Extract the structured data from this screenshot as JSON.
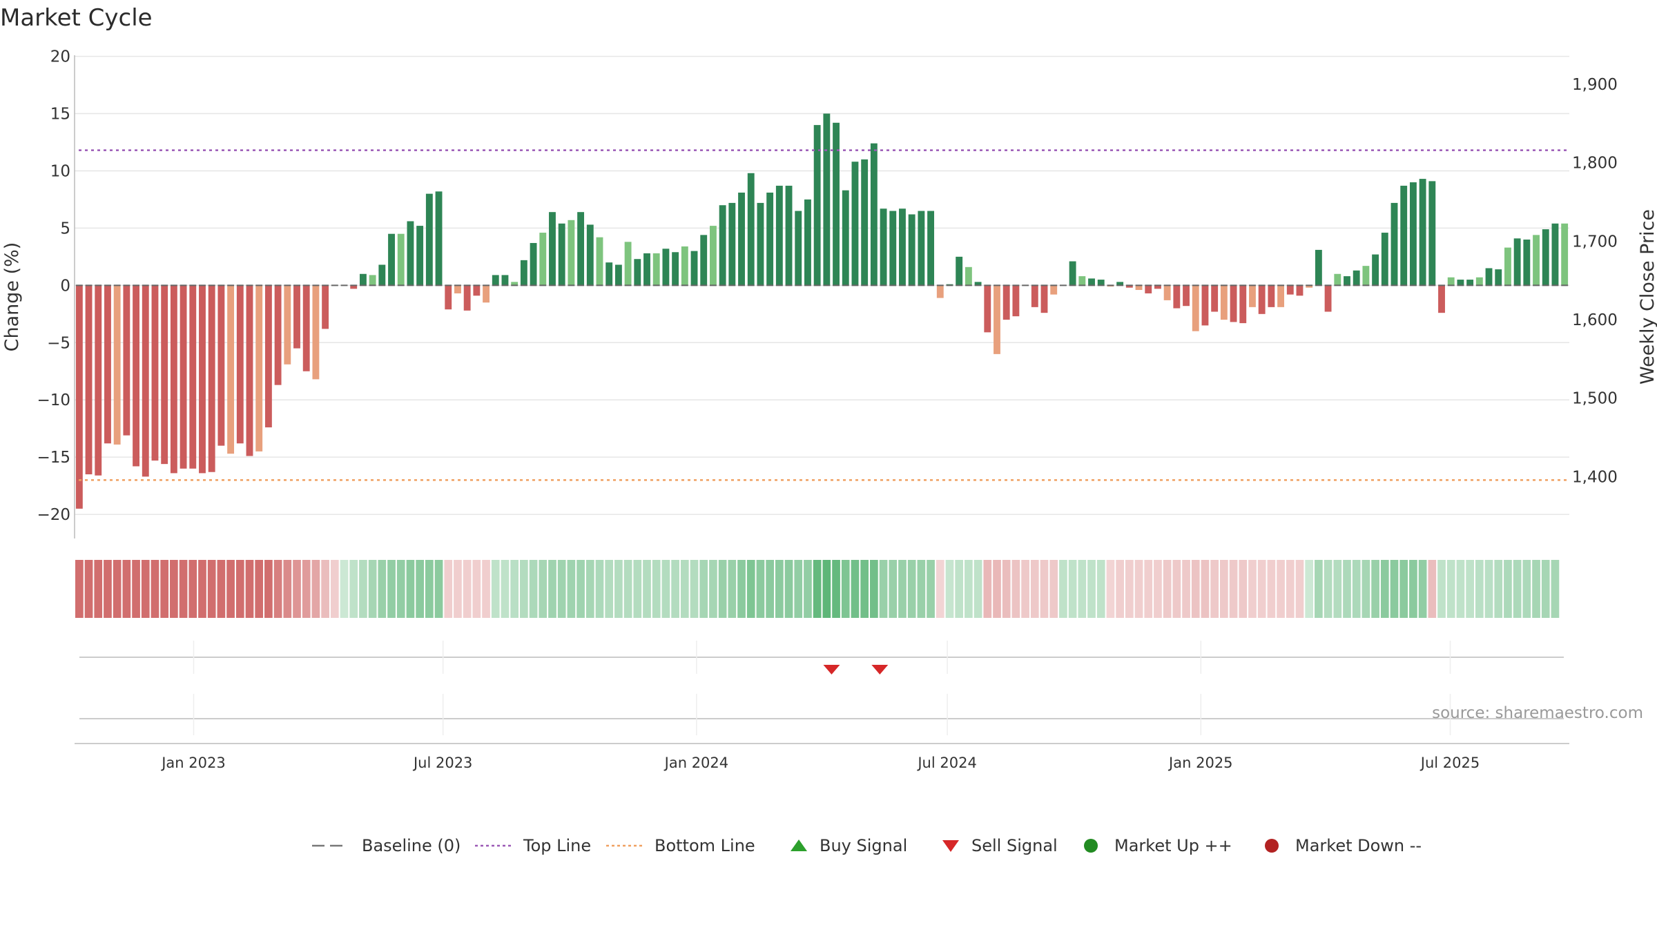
{
  "chart_data": {
    "type": "bar",
    "title": "Market Cycle",
    "ylabel": "Change (%)",
    "y2label": "Weekly Close Price",
    "ylim": [
      -21.5,
      21
    ],
    "yticks": [
      20,
      15,
      10,
      5,
      0,
      -5,
      -10,
      -15,
      -20
    ],
    "y2lim": [
      1330,
      1950
    ],
    "y2ticks": [
      1900,
      1800,
      1700,
      1600,
      1500,
      1400
    ],
    "top_line": 11.8,
    "bottom_line": -17.0,
    "start_date": "2022-10-10",
    "end_date": "2025-09-22",
    "x_ticks": [
      {
        "date": "2023-01-01",
        "label": "Jan 2023"
      },
      {
        "date": "2023-07-01",
        "label": "Jul 2023"
      },
      {
        "date": "2024-01-01",
        "label": "Jan 2024"
      },
      {
        "date": "2024-07-01",
        "label": "Jul 2024"
      },
      {
        "date": "2025-01-01",
        "label": "Jan 2025"
      },
      {
        "date": "2025-07-01",
        "label": "Jul 2025"
      }
    ],
    "values": [
      -19.5,
      -16.5,
      -16.6,
      -13.8,
      -13.9,
      -13.1,
      -15.8,
      -16.7,
      -15.3,
      -15.6,
      -16.4,
      -16.0,
      -16.0,
      -16.4,
      -16.3,
      -14.0,
      -14.7,
      -13.8,
      -14.9,
      -14.5,
      -12.4,
      -8.7,
      -6.9,
      -5.5,
      -7.5,
      -8.2,
      -3.8,
      0,
      0,
      -0.3,
      1.0,
      0.9,
      1.8,
      4.5,
      4.5,
      5.6,
      5.2,
      8.0,
      8.2,
      -2.1,
      -0.7,
      -2.2,
      -0.9,
      -1.5,
      0.9,
      0.9,
      0.3,
      2.2,
      3.7,
      4.6,
      6.4,
      5.4,
      5.7,
      6.4,
      5.3,
      4.2,
      2.0,
      1.8,
      3.8,
      2.3,
      2.8,
      2.8,
      3.2,
      2.9,
      3.4,
      3.0,
      4.4,
      5.2,
      7.0,
      7.2,
      8.1,
      9.8,
      7.2,
      8.1,
      8.7,
      8.7,
      6.5,
      7.5,
      14.0,
      15.0,
      14.2,
      8.3,
      10.8,
      11.0,
      12.4,
      6.7,
      6.5,
      6.7,
      6.2,
      6.5,
      6.5,
      -1.1,
      0.1,
      2.5,
      1.6,
      0.3,
      -4.1,
      -6.0,
      -3.0,
      -2.7,
      0,
      -1.9,
      -2.4,
      -0.8,
      0,
      2.1,
      0.8,
      0.6,
      0.5,
      -0.1,
      0.3,
      -0.2,
      -0.4,
      -0.7,
      -0.3,
      -1.3,
      -2.0,
      -1.8,
      -4.0,
      -3.5,
      -2.3,
      -3.0,
      -3.2,
      -3.3,
      -1.9,
      -2.5,
      -1.9,
      -1.9,
      -0.8,
      -0.9,
      -0.2,
      3.1,
      -2.3,
      1.0,
      0.8,
      1.3,
      1.7,
      2.7,
      4.6,
      7.2,
      8.7,
      9.0,
      9.3,
      9.1,
      -2.4,
      0.7,
      0.5,
      0.5,
      0.7,
      1.5,
      1.4,
      3.3,
      4.1,
      4.0,
      4.4,
      4.9,
      5.4,
      5.4
    ],
    "cycle_strength": [
      -1.0,
      -1.0,
      -1.0,
      -1.0,
      -1.0,
      -1.0,
      -1.0,
      -1.0,
      -1.0,
      -1.0,
      -1.0,
      -1.0,
      -1.0,
      -1.0,
      -1.0,
      -1.0,
      -1.0,
      -1.0,
      -1.0,
      -1.0,
      -1.0,
      -0.85,
      -0.75,
      -0.65,
      -0.6,
      -0.5,
      -0.3,
      -0.15,
      0.1,
      0.2,
      0.3,
      0.4,
      0.5,
      0.55,
      0.55,
      0.6,
      0.6,
      0.6,
      0.6,
      -0.15,
      -0.15,
      -0.15,
      -0.15,
      -0.15,
      0.2,
      0.2,
      0.25,
      0.3,
      0.35,
      0.4,
      0.45,
      0.45,
      0.45,
      0.45,
      0.4,
      0.35,
      0.3,
      0.3,
      0.3,
      0.3,
      0.3,
      0.3,
      0.3,
      0.3,
      0.3,
      0.3,
      0.4,
      0.4,
      0.5,
      0.5,
      0.6,
      0.7,
      0.6,
      0.6,
      0.6,
      0.6,
      0.55,
      0.55,
      0.9,
      0.95,
      0.9,
      0.7,
      0.8,
      0.8,
      0.8,
      0.5,
      0.5,
      0.5,
      0.5,
      0.5,
      0.5,
      -0.1,
      0.15,
      0.2,
      0.2,
      0.2,
      -0.35,
      -0.35,
      -0.3,
      -0.25,
      -0.2,
      -0.2,
      -0.2,
      -0.2,
      0.2,
      0.2,
      0.2,
      0.2,
      0.2,
      -0.1,
      -0.15,
      -0.15,
      -0.15,
      -0.15,
      -0.15,
      -0.2,
      -0.2,
      -0.2,
      -0.25,
      -0.25,
      -0.2,
      -0.2,
      -0.2,
      -0.2,
      -0.15,
      -0.15,
      -0.15,
      -0.15,
      -0.15,
      -0.15,
      0.1,
      0.4,
      0.3,
      0.3,
      0.35,
      0.35,
      0.4,
      0.5,
      0.6,
      0.6,
      0.6,
      0.6,
      0.55,
      -0.3,
      0.2,
      0.2,
      0.2,
      0.2,
      0.25,
      0.25,
      0.3,
      0.35,
      0.35,
      0.35,
      0.4,
      0.4,
      0.4
    ],
    "sell_signal_dates": [
      "2024-04-08",
      "2024-05-13"
    ],
    "colors": {
      "strong_down": "#cb5c5c",
      "weak_down": "#e8a07d",
      "strong_up": "#2e8555",
      "weak_up": "#7ec47e",
      "top_line": "#9b59b6",
      "bottom_line": "#f0a060",
      "sell_signal": "#d62728",
      "buy_signal": "#2ca02c",
      "market_up": "#228b22",
      "market_down": "#b22222"
    },
    "legend": [
      {
        "label": "Baseline (0)",
        "marker": "dash"
      },
      {
        "label": "Top Line",
        "marker": "dot-purple"
      },
      {
        "label": "Bottom Line",
        "marker": "dot-orange"
      },
      {
        "label": "Buy Signal",
        "marker": "triangle-up"
      },
      {
        "label": "Sell Signal",
        "marker": "triangle-down"
      },
      {
        "label": "Market Up ++",
        "marker": "circle-green"
      },
      {
        "label": "Market Down --",
        "marker": "circle-red"
      }
    ],
    "source": "source: sharemaestro.com",
    "legend_position": "bottom"
  }
}
